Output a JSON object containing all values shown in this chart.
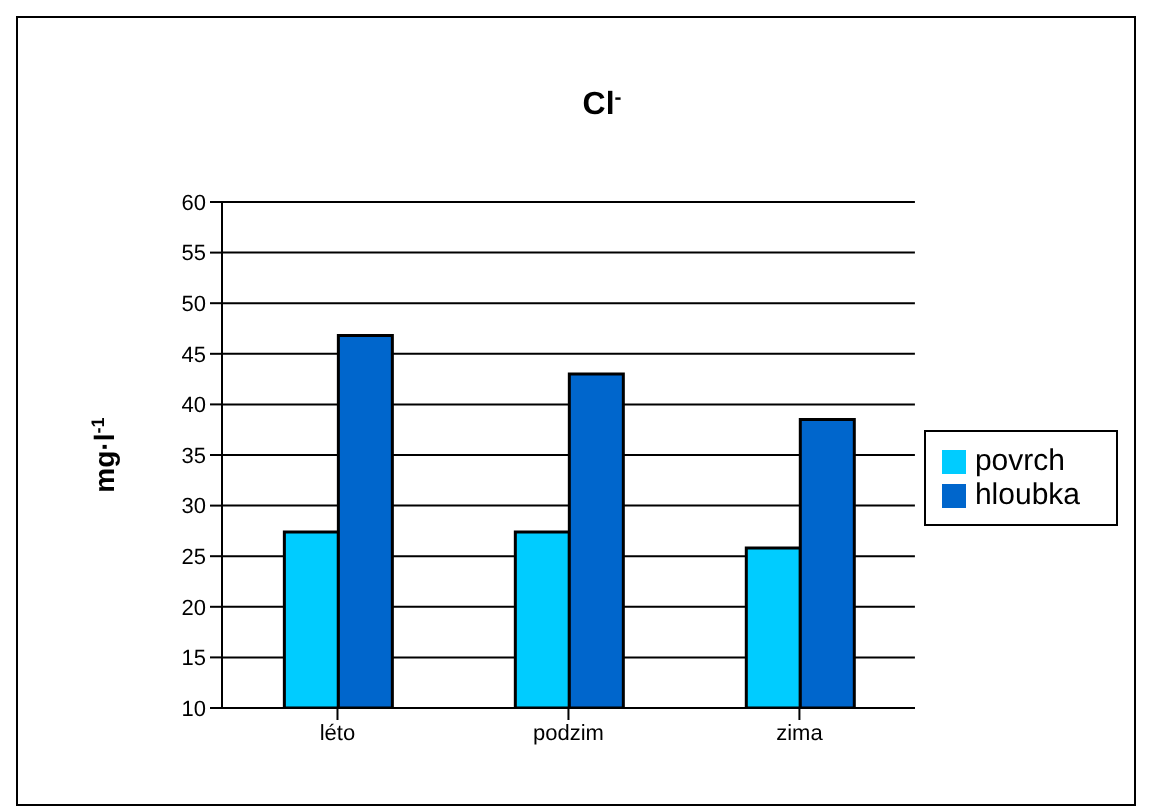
{
  "chart_data": {
    "type": "bar",
    "title": "Cl$^{-}$",
    "ylabel": "mg·l$^{-1}$",
    "categories": [
      "léto",
      "podzim",
      "zima"
    ],
    "series": [
      {
        "name": "povrch",
        "color": "#00ccff",
        "values": [
          27.4,
          27.4,
          25.8
        ]
      },
      {
        "name": "hloubka",
        "color": "#0066cc",
        "values": [
          46.8,
          43,
          38.5
        ]
      }
    ],
    "ylim": [
      10,
      60
    ],
    "yticks": [
      10,
      15,
      20,
      25,
      30,
      35,
      40,
      45,
      50,
      55,
      60
    ],
    "grid": "y",
    "legend": "right"
  }
}
